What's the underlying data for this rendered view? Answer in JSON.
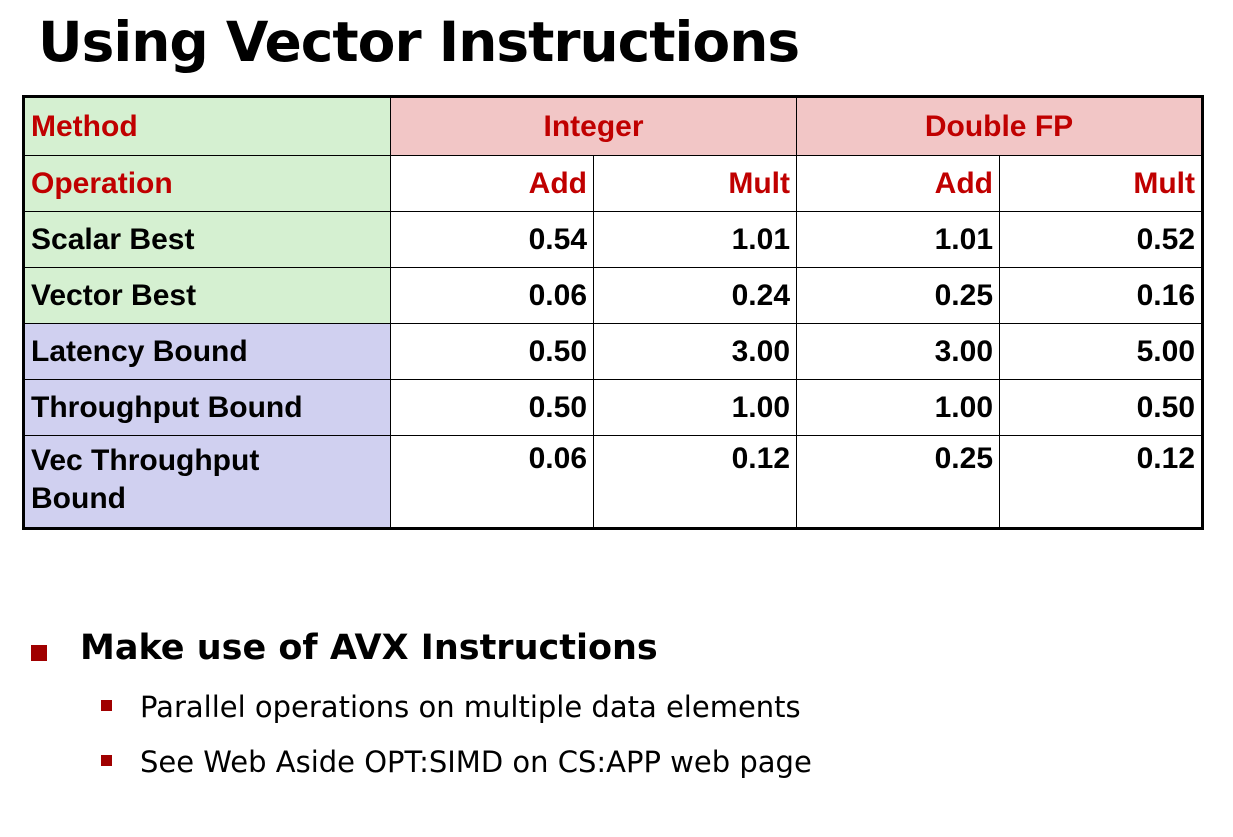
{
  "title": "Using Vector Instructions",
  "table": {
    "header": {
      "method": "Method",
      "integer": "Integer",
      "double": "Double FP"
    },
    "operation": {
      "label": "Operation",
      "cols": [
        "Add",
        "Mult",
        "Add",
        "Mult"
      ]
    },
    "rows": [
      {
        "label": "Scalar Best",
        "values": [
          "0.54",
          "1.01",
          "1.01",
          "0.52"
        ],
        "group": "measured"
      },
      {
        "label": "Vector Best",
        "values": [
          "0.06",
          "0.24",
          "0.25",
          "0.16"
        ],
        "group": "measured"
      },
      {
        "label": "Latency Bound",
        "values": [
          "0.50",
          "3.00",
          "3.00",
          "5.00"
        ],
        "group": "bound"
      },
      {
        "label": "Throughput Bound",
        "values": [
          "0.50",
          "1.00",
          "1.00",
          "0.50"
        ],
        "group": "bound"
      },
      {
        "label": "Vec Throughput Bound",
        "values": [
          "0.06",
          "0.12",
          "0.25",
          "0.12"
        ],
        "group": "bound"
      }
    ]
  },
  "bullets": {
    "main": "Make use of AVX Instructions",
    "sub": [
      "Parallel operations on multiple data elements",
      "See Web Aside OPT:SIMD on CS:APP web page"
    ]
  },
  "colors": {
    "accent": "#c00000",
    "green": "#d5f0d1",
    "pink": "#f2c6c6",
    "lavender": "#d0d0f0"
  }
}
